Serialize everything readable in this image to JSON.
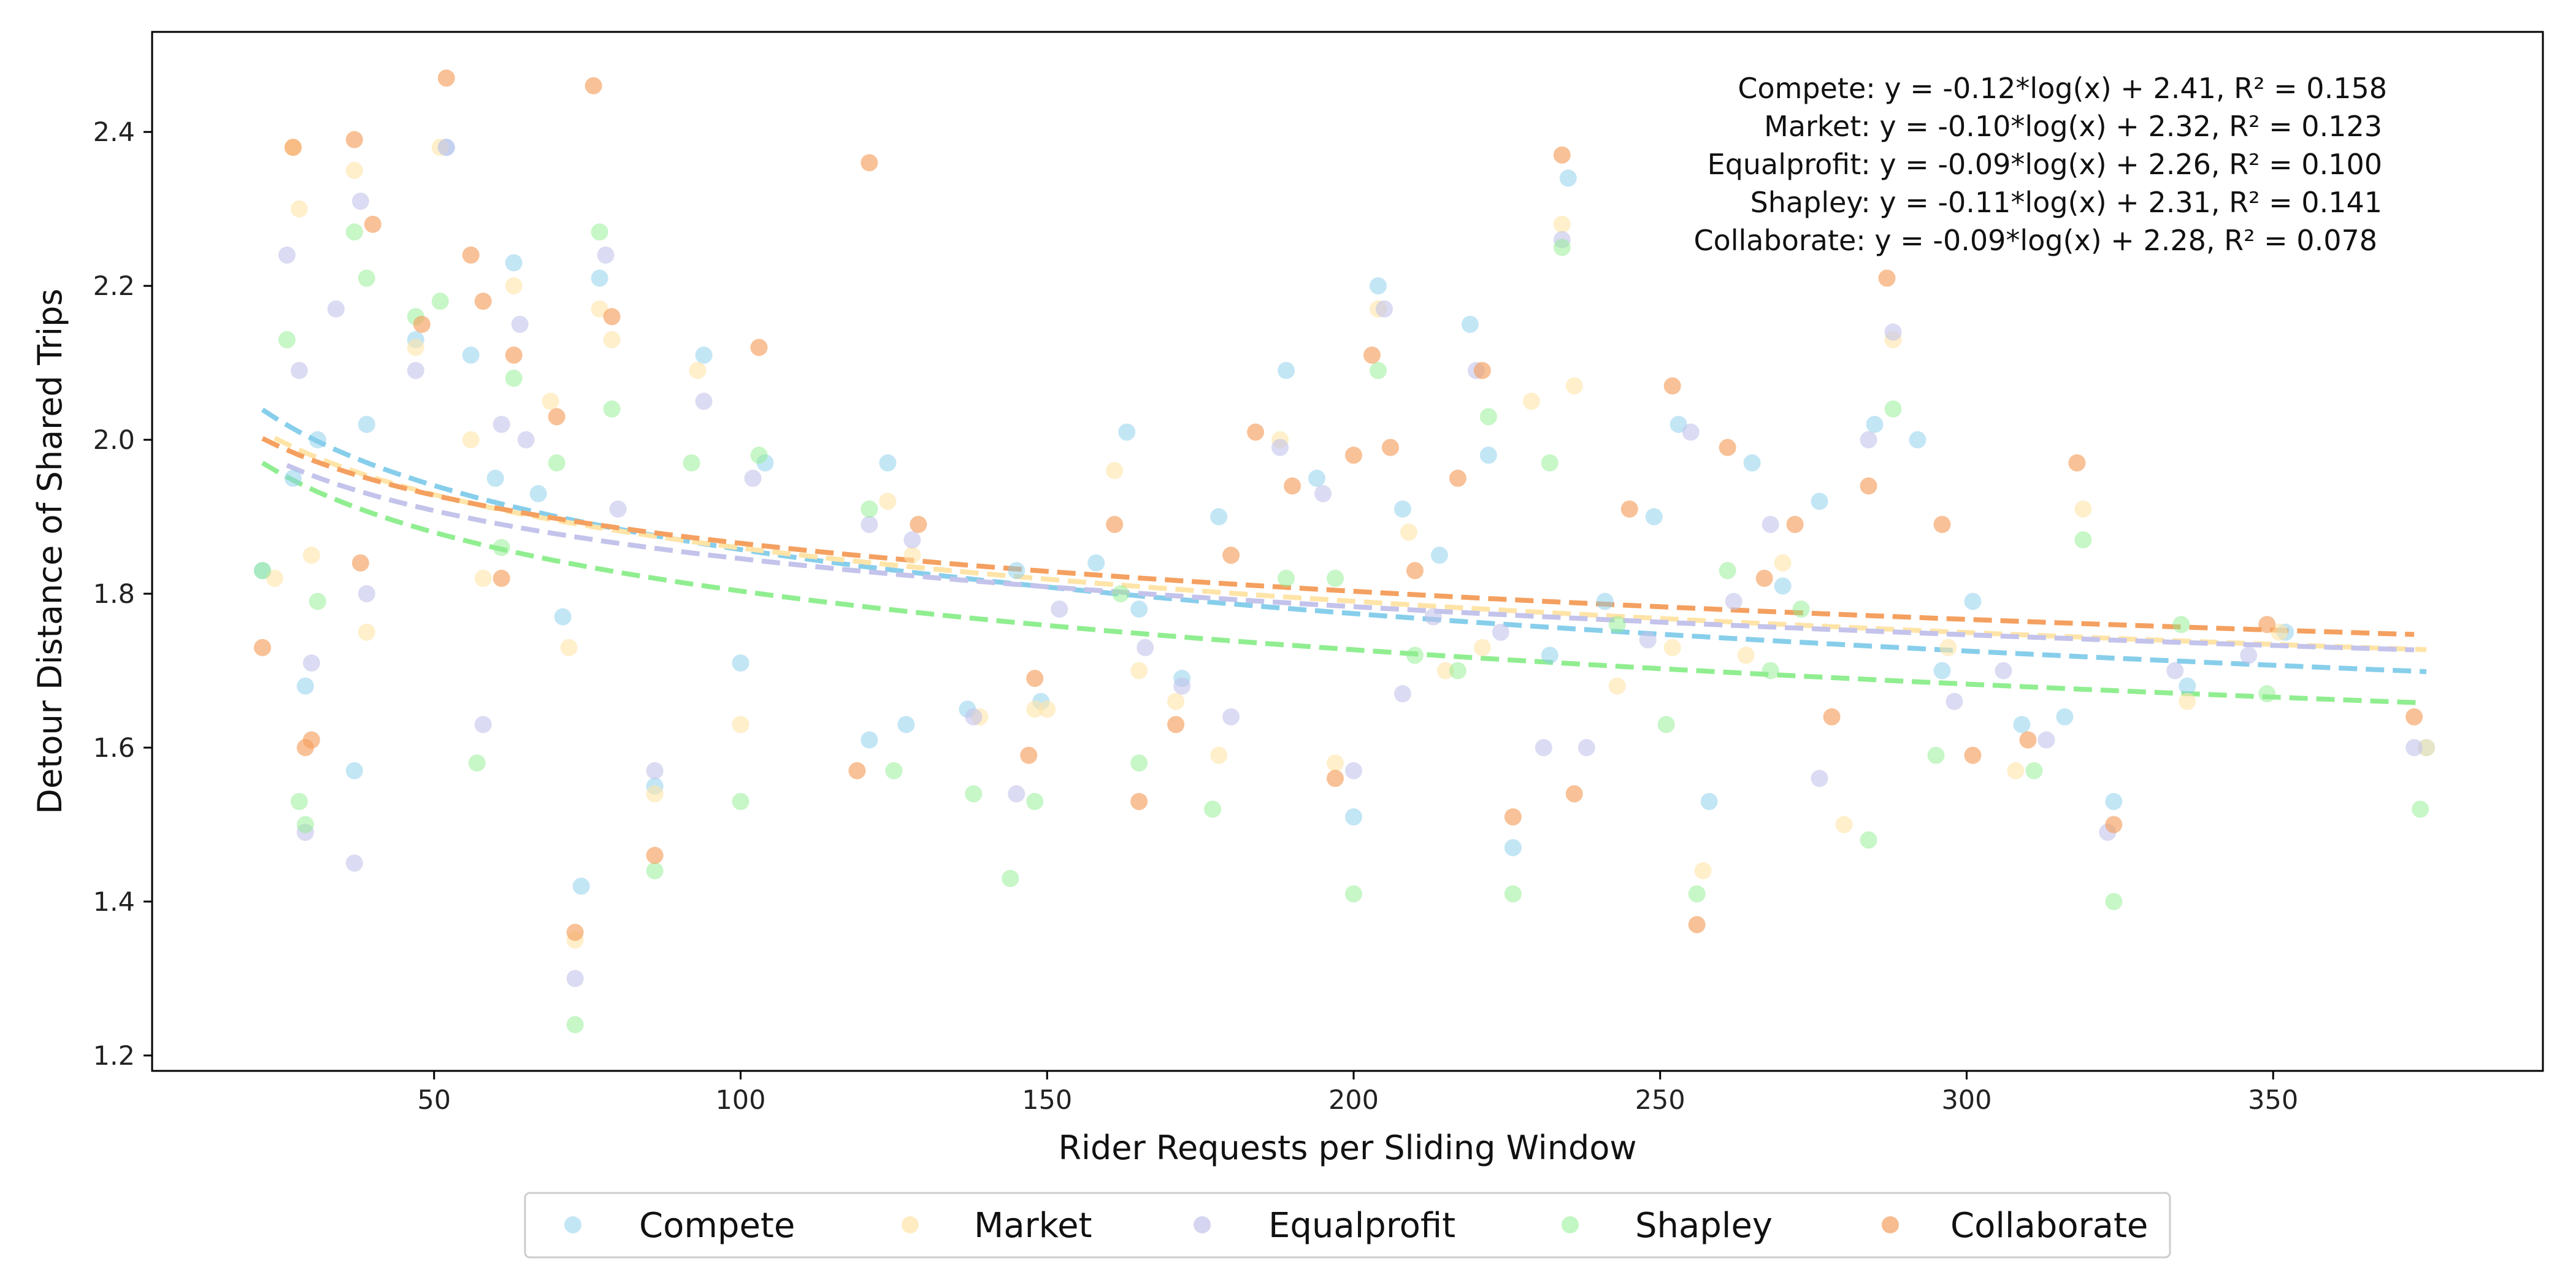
{
  "chart_data": {
    "type": "scatter",
    "title": "",
    "xlabel": "Rider Requests per Sliding Window",
    "ylabel": "Detour Distance of Shared Trips",
    "xlim": [
      4,
      394
    ],
    "ylim": [
      1.18,
      2.53
    ],
    "xticks": [
      50,
      100,
      150,
      200,
      250,
      300,
      350
    ],
    "yticks": [
      1.2,
      1.4,
      1.6,
      1.8,
      2.0,
      2.2,
      2.4
    ],
    "ytick_labels": [
      "1.2",
      "1.4",
      "1.6",
      "1.8",
      "2.0",
      "2.2",
      "2.4"
    ],
    "grid": false,
    "legend_position": "bottom-center-outside",
    "series": [
      {
        "name": "Compete",
        "color": "#87ceeb",
        "fit": {
          "a": -0.12,
          "b": 2.41,
          "r2": 0.158
        },
        "annotation": "Compete: y = -0.12*log(x) + 2.41, R² = 0.158",
        "x": [
          22,
          27,
          29,
          31,
          37,
          39,
          47,
          52,
          56,
          60,
          63,
          67,
          71,
          74,
          77,
          86,
          94,
          100,
          104,
          121,
          124,
          127,
          137,
          145,
          149,
          158,
          163,
          165,
          172,
          178,
          189,
          194,
          200,
          204,
          208,
          214,
          219,
          222,
          226,
          232,
          235,
          241,
          249,
          253,
          258,
          265,
          270,
          276,
          285,
          292,
          296,
          301,
          309,
          316,
          324,
          336,
          352,
          375
        ],
        "y": [
          1.83,
          1.95,
          1.68,
          2.0,
          1.57,
          2.02,
          2.13,
          2.38,
          2.11,
          1.95,
          2.23,
          1.93,
          1.77,
          1.42,
          2.21,
          1.55,
          2.11,
          1.71,
          1.97,
          1.61,
          1.97,
          1.63,
          1.65,
          1.83,
          1.66,
          1.84,
          2.01,
          1.78,
          1.69,
          1.9,
          2.09,
          1.95,
          1.51,
          2.2,
          1.91,
          1.85,
          2.15,
          1.98,
          1.47,
          1.72,
          2.34,
          1.79,
          1.9,
          2.02,
          1.53,
          1.97,
          1.81,
          1.92,
          2.02,
          2.0,
          1.7,
          1.79,
          1.63,
          1.64,
          1.53,
          1.68,
          1.75,
          1.6
        ]
      },
      {
        "name": "Market",
        "color": "#ffe4a8",
        "fit": {
          "a": -0.1,
          "b": 2.32,
          "r2": 0.123
        },
        "annotation": "Market: y = -0.10*log(x) + 2.32, R² = 0.123",
        "x": [
          24,
          27,
          28,
          30,
          37,
          39,
          47,
          51,
          56,
          58,
          63,
          69,
          72,
          73,
          77,
          79,
          86,
          93,
          100,
          124,
          128,
          139,
          148,
          150,
          161,
          165,
          171,
          178,
          188,
          197,
          204,
          209,
          215,
          221,
          229,
          234,
          236,
          243,
          252,
          257,
          264,
          270,
          280,
          288,
          297,
          308,
          319,
          336,
          351,
          375
        ],
        "y": [
          1.82,
          2.38,
          2.3,
          1.85,
          2.35,
          1.75,
          2.12,
          2.38,
          2.0,
          1.82,
          2.2,
          2.05,
          1.73,
          1.35,
          2.17,
          2.13,
          1.54,
          2.09,
          1.63,
          1.92,
          1.85,
          1.64,
          1.65,
          1.65,
          1.96,
          1.7,
          1.66,
          1.59,
          2.0,
          1.58,
          2.17,
          1.88,
          1.7,
          1.73,
          2.05,
          2.28,
          2.07,
          1.68,
          1.73,
          1.44,
          1.72,
          1.84,
          1.5,
          2.13,
          1.73,
          1.57,
          1.91,
          1.66,
          1.75,
          1.6
        ]
      },
      {
        "name": "Equalprofit",
        "color": "#c3c3eb",
        "fit": {
          "a": -0.09,
          "b": 2.26,
          "r2": 0.1
        },
        "annotation": "Equalprofit: y = -0.09*log(x) + 2.26, R² = 0.100",
        "x": [
          26,
          28,
          29,
          30,
          34,
          37,
          38,
          39,
          47,
          52,
          58,
          61,
          64,
          65,
          73,
          78,
          80,
          86,
          94,
          102,
          121,
          128,
          138,
          145,
          152,
          166,
          172,
          180,
          188,
          195,
          200,
          205,
          208,
          213,
          220,
          224,
          231,
          234,
          238,
          248,
          255,
          262,
          268,
          276,
          284,
          288,
          298,
          306,
          313,
          323,
          334,
          346,
          373
        ],
        "y": [
          2.24,
          2.09,
          1.49,
          1.71,
          2.17,
          1.45,
          2.31,
          1.8,
          2.09,
          2.38,
          1.63,
          2.02,
          2.15,
          2.0,
          1.3,
          2.24,
          1.91,
          1.57,
          2.05,
          1.95,
          1.89,
          1.87,
          1.64,
          1.54,
          1.78,
          1.73,
          1.68,
          1.64,
          1.99,
          1.93,
          1.57,
          2.17,
          1.67,
          1.77,
          2.09,
          1.75,
          1.6,
          2.26,
          1.6,
          1.74,
          2.01,
          1.79,
          1.89,
          1.56,
          2.0,
          2.14,
          1.66,
          1.7,
          1.61,
          1.49,
          1.7,
          1.72,
          1.6
        ]
      },
      {
        "name": "Shapley",
        "color": "#90ee90",
        "fit": {
          "a": -0.11,
          "b": 2.31,
          "r2": 0.141
        },
        "annotation": "Shapley: y = -0.11*log(x) + 2.31, R² = 0.141",
        "x": [
          22,
          26,
          28,
          29,
          31,
          37,
          39,
          47,
          51,
          57,
          61,
          63,
          70,
          73,
          77,
          79,
          86,
          92,
          100,
          103,
          121,
          125,
          138,
          144,
          148,
          162,
          165,
          177,
          189,
          197,
          200,
          204,
          210,
          217,
          222,
          226,
          232,
          234,
          243,
          251,
          256,
          261,
          268,
          273,
          284,
          288,
          295,
          311,
          319,
          324,
          335,
          349,
          374
        ],
        "y": [
          1.83,
          2.13,
          1.53,
          1.5,
          1.79,
          2.27,
          2.21,
          2.16,
          2.18,
          1.58,
          1.86,
          2.08,
          1.97,
          1.24,
          2.27,
          2.04,
          1.44,
          1.97,
          1.53,
          1.98,
          1.91,
          1.57,
          1.54,
          1.43,
          1.53,
          1.8,
          1.58,
          1.52,
          1.82,
          1.82,
          1.41,
          2.09,
          1.72,
          1.7,
          2.03,
          1.41,
          1.97,
          2.25,
          1.76,
          1.63,
          1.41,
          1.83,
          1.7,
          1.78,
          1.48,
          2.04,
          1.59,
          1.57,
          1.87,
          1.4,
          1.76,
          1.67,
          1.52
        ]
      },
      {
        "name": "Collaborate",
        "color": "#f4a060",
        "fit": {
          "a": -0.09,
          "b": 2.28,
          "r2": 0.078
        },
        "annotation": "Collaborate: y = -0.09*log(x) + 2.28, R² = 0.078",
        "x": [
          22,
          27,
          29,
          30,
          37,
          38,
          40,
          48,
          52,
          56,
          58,
          61,
          63,
          70,
          73,
          76,
          79,
          86,
          103,
          119,
          121,
          129,
          147,
          148,
          161,
          165,
          171,
          180,
          184,
          190,
          197,
          200,
          203,
          206,
          210,
          217,
          221,
          226,
          234,
          236,
          245,
          252,
          256,
          261,
          267,
          272,
          278,
          284,
          287,
          296,
          301,
          310,
          318,
          324,
          349,
          373
        ],
        "y": [
          1.73,
          2.38,
          1.6,
          1.61,
          2.39,
          1.84,
          2.28,
          2.15,
          2.47,
          2.24,
          2.18,
          1.82,
          2.11,
          2.03,
          1.36,
          2.46,
          2.16,
          1.46,
          2.12,
          1.57,
          2.36,
          1.89,
          1.59,
          1.69,
          1.89,
          1.53,
          1.63,
          1.85,
          2.01,
          1.94,
          1.56,
          1.98,
          2.11,
          1.99,
          1.83,
          1.95,
          2.09,
          1.51,
          2.37,
          1.54,
          1.91,
          2.07,
          1.37,
          1.99,
          1.82,
          1.89,
          1.64,
          1.94,
          2.21,
          1.89,
          1.59,
          1.61,
          1.97,
          1.5,
          1.76,
          1.64
        ]
      }
    ]
  }
}
